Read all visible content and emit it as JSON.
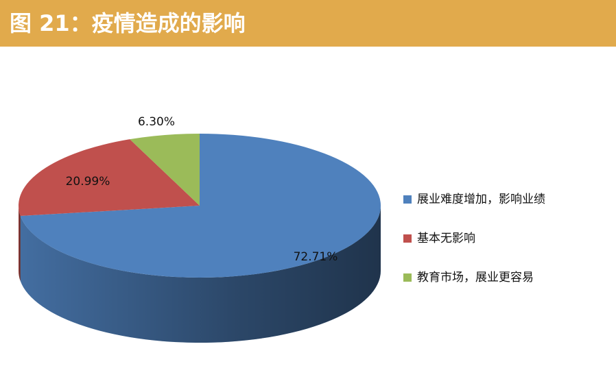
{
  "chart_data": {
    "type": "pie",
    "title": "图 21：疫情造成的影响",
    "categories": [
      "展业难度增加，影响业绩",
      "基本无影响",
      "教育市场，展业更容易"
    ],
    "values": [
      72.71,
      20.99,
      6.3
    ],
    "value_labels": [
      "72.71%",
      "20.99%",
      "6.30%"
    ],
    "colors": [
      "#4f81bd",
      "#c0504d",
      "#9bbb59"
    ]
  }
}
